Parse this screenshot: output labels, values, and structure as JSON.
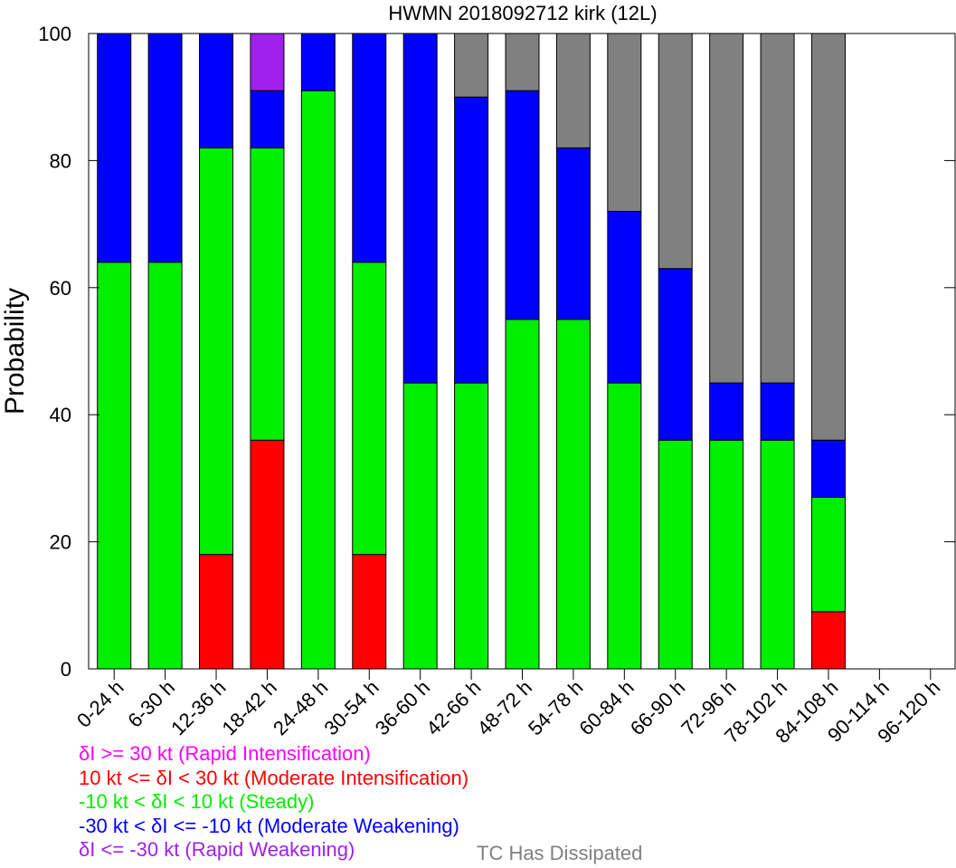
{
  "chart_data": {
    "type": "bar",
    "stacked": true,
    "title": "HWMN 2018092712 kirk (12L)",
    "ylabel": "Probability",
    "xlabel": "",
    "ylim": [
      0,
      100
    ],
    "yticks": [
      0,
      20,
      40,
      60,
      80,
      100
    ],
    "categories": [
      "0-24 h",
      "6-30 h",
      "12-36 h",
      "18-42 h",
      "24-48 h",
      "30-54 h",
      "36-60 h",
      "42-66 h",
      "48-72 h",
      "54-78 h",
      "60-84 h",
      "66-90 h",
      "72-96 h",
      "78-102 h",
      "84-108 h",
      "90-114 h",
      "96-120 h"
    ],
    "series": [
      {
        "name": "10 kt <= δI < 30 kt (Moderate Intensification)",
        "color": "#ff0000",
        "values": [
          0,
          0,
          18,
          36,
          0,
          18,
          0,
          0,
          0,
          0,
          0,
          0,
          0,
          0,
          9,
          0,
          0
        ]
      },
      {
        "name": "-10 kt < δI < 10 kt (Steady)",
        "color": "#00ee00",
        "values": [
          64,
          64,
          64,
          46,
          91,
          46,
          45,
          45,
          55,
          55,
          45,
          36,
          36,
          36,
          18,
          0,
          0
        ]
      },
      {
        "name": "-30 kt < δI <= -10 kt (Moderate Weakening)",
        "color": "#0000ff",
        "values": [
          36,
          36,
          18,
          9,
          9,
          36,
          55,
          45,
          36,
          27,
          27,
          27,
          9,
          9,
          9,
          0,
          0
        ]
      },
      {
        "name": "δI <= -30 kt (Rapid Weakening)",
        "color": "#a020f0",
        "values": [
          0,
          0,
          0,
          9,
          0,
          0,
          0,
          0,
          0,
          0,
          0,
          0,
          0,
          0,
          0,
          0,
          0
        ]
      },
      {
        "name": "TC Has Dissipated",
        "color": "#808080",
        "values": [
          0,
          0,
          0,
          0,
          0,
          0,
          0,
          10,
          9,
          18,
          28,
          37,
          55,
          55,
          64,
          0,
          0
        ]
      }
    ]
  },
  "legend": [
    {
      "text": "δI >= 30 kt (Rapid Intensification)",
      "color": "#ff00ff"
    },
    {
      "text": "10 kt <= δI < 30 kt (Moderate Intensification)",
      "color": "#ff0000"
    },
    {
      "text": "-10 kt < δI < 10 kt (Steady)",
      "color": "#00ee00"
    },
    {
      "text": "-30 kt < δI <= -10 kt (Moderate Weakening)",
      "color": "#0000ff"
    },
    {
      "text": "δI <= -30 kt (Rapid Weakening)",
      "color": "#a020f0"
    }
  ],
  "dissipated_label": {
    "text": "TC Has Dissipated",
    "color": "#808080"
  }
}
